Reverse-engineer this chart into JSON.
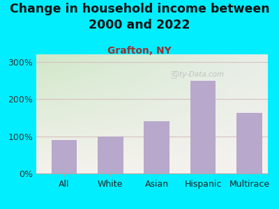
{
  "title": "Change in household income between\n2000 and 2022",
  "subtitle": "Grafton, NY",
  "categories": [
    "All",
    "White",
    "Asian",
    "Hispanic",
    "Multirace"
  ],
  "values": [
    90,
    100,
    140,
    248,
    163
  ],
  "bar_color": "#b8a8cc",
  "title_fontsize": 12.5,
  "subtitle_fontsize": 10,
  "subtitle_color": "#993333",
  "tick_label_color": "#222222",
  "ytick_color": "#333333",
  "background_outer": "#00eeff",
  "background_inner_topleft": "#c8e0c0",
  "background_inner_topright": "#e8ece8",
  "background_inner_bottom": "#f5f2ee",
  "grid_color": "#d8c0c0",
  "yticks": [
    0,
    100,
    200,
    300
  ],
  "ylim": [
    0,
    320
  ],
  "watermark": "City-Data.com"
}
